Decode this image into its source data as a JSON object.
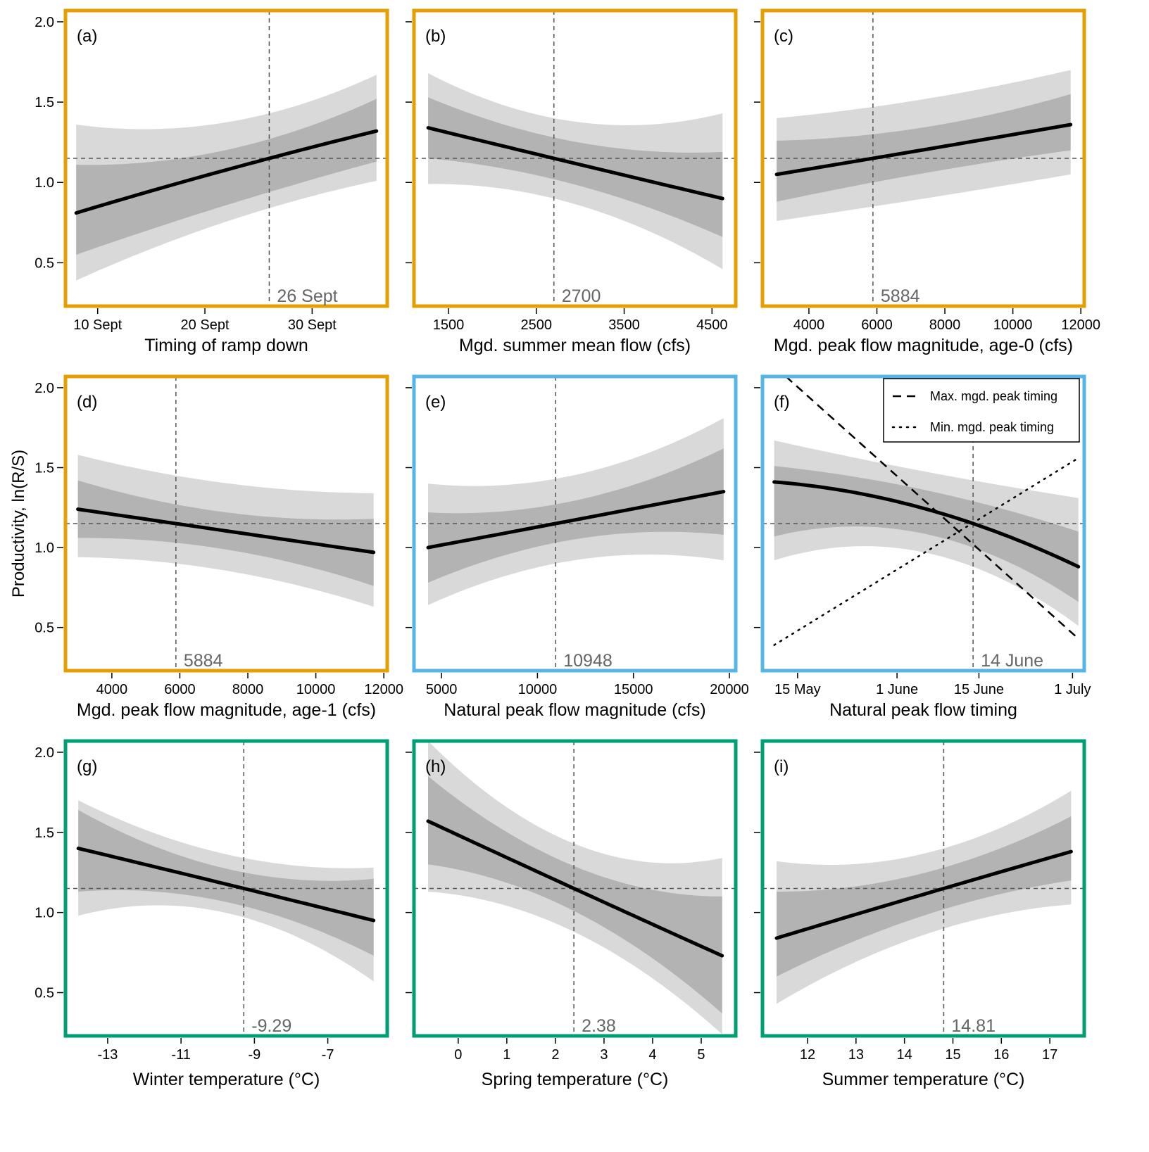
{
  "y_axis_label": "Productivity, ln(R/S)",
  "colors": {
    "flow_management": "#E69F00",
    "natural_flow": "#56B4E9",
    "temperature": "#009E73",
    "band_outer": "#d9d9d9",
    "band_inner": "#b3b3b3",
    "line": "#000000",
    "reference": "#555555"
  },
  "chart_data": [
    {
      "panel": "(a)",
      "type": "line",
      "frame_color": "#E69F00",
      "xlabel": "Timing of ramp down",
      "x_kind": "date",
      "xlim": [
        "09-07",
        "10-07"
      ],
      "ylim": [
        0.23,
        2.07
      ],
      "yticks": [
        0.5,
        1.0,
        1.5,
        2.0
      ],
      "xticks": [
        {
          "v": "09-10",
          "label": "10 Sept"
        },
        {
          "v": "09-20",
          "label": "20 Sept"
        },
        {
          "v": "09-30",
          "label": "30 Sept"
        }
      ],
      "ref_x": "09-26",
      "ref_label": "26 Sept",
      "ref_y": 1.15,
      "x": [
        "09-08",
        "09-26",
        "10-06"
      ],
      "fit": [
        0.81,
        1.15,
        1.32
      ],
      "inner_upper": [
        1.11,
        1.27,
        1.52
      ],
      "inner_lower": [
        0.55,
        0.94,
        1.13
      ],
      "outer_upper": [
        1.36,
        1.43,
        1.67
      ],
      "outer_lower": [
        0.39,
        0.84,
        1.01
      ]
    },
    {
      "panel": "(b)",
      "type": "line",
      "frame_color": "#E69F00",
      "xlabel": "Mgd. summer mean flow (cfs)",
      "x_kind": "number",
      "xlim": [
        1107,
        4770
      ],
      "ylim": [
        0.23,
        2.07
      ],
      "yticks": [
        0.5,
        1.0,
        1.5,
        2.0
      ],
      "xticks": [
        {
          "v": 1500,
          "label": "1500"
        },
        {
          "v": 2500,
          "label": "2500"
        },
        {
          "v": 3500,
          "label": "3500"
        },
        {
          "v": 4500,
          "label": "4500"
        }
      ],
      "ref_x": 2700,
      "ref_label": "2700",
      "ref_y": 1.15,
      "x": [
        1268,
        2700,
        4620
      ],
      "fit": [
        1.34,
        1.15,
        0.9
      ],
      "inner_upper": [
        1.53,
        1.28,
        1.19
      ],
      "inner_lower": [
        1.15,
        1.02,
        0.66
      ],
      "outer_upper": [
        1.68,
        1.4,
        1.43
      ],
      "outer_lower": [
        0.99,
        0.9,
        0.46
      ]
    },
    {
      "panel": "(c)",
      "type": "line",
      "frame_color": "#E69F00",
      "xlabel": "Mgd. peak flow magnitude, age-0 (cfs)",
      "x_kind": "number",
      "xlim": [
        2634,
        12100
      ],
      "ylim": [
        0.23,
        2.07
      ],
      "yticks": [
        0.5,
        1.0,
        1.5,
        2.0
      ],
      "xticks": [
        {
          "v": 4000,
          "label": "4000"
        },
        {
          "v": 6000,
          "label": "6000"
        },
        {
          "v": 8000,
          "label": "8000"
        },
        {
          "v": 10000,
          "label": "10000"
        },
        {
          "v": 12000,
          "label": "12000"
        }
      ],
      "ref_x": 5884,
      "ref_label": "5884",
      "ref_y": 1.15,
      "x": [
        3050,
        5884,
        11700
      ],
      "fit": [
        1.05,
        1.15,
        1.36
      ],
      "inner_upper": [
        1.26,
        1.3,
        1.55
      ],
      "inner_lower": [
        0.88,
        1.0,
        1.2
      ],
      "outer_upper": [
        1.4,
        1.47,
        1.7
      ],
      "outer_lower": [
        0.76,
        0.85,
        1.05
      ]
    },
    {
      "panel": "(d)",
      "type": "line",
      "frame_color": "#E69F00",
      "xlabel": "Mgd. peak flow magnitude, age-1 (cfs)",
      "x_kind": "number",
      "xlim": [
        2636,
        12100
      ],
      "ylim": [
        0.23,
        2.07
      ],
      "yticks": [
        0.5,
        1.0,
        1.5,
        2.0
      ],
      "xticks": [
        {
          "v": 4000,
          "label": "4000"
        },
        {
          "v": 6000,
          "label": "6000"
        },
        {
          "v": 8000,
          "label": "8000"
        },
        {
          "v": 10000,
          "label": "10000"
        },
        {
          "v": 12000,
          "label": "12000"
        }
      ],
      "ref_x": 5884,
      "ref_label": "5884",
      "ref_y": 1.15,
      "x": [
        3000,
        5884,
        11700
      ],
      "fit": [
        1.24,
        1.15,
        0.97
      ],
      "inner_upper": [
        1.42,
        1.27,
        1.18
      ],
      "inner_lower": [
        1.06,
        1.03,
        0.76
      ],
      "outer_upper": [
        1.58,
        1.45,
        1.34
      ],
      "outer_lower": [
        0.94,
        0.9,
        0.63
      ]
    },
    {
      "panel": "(e)",
      "type": "line",
      "frame_color": "#56B4E9",
      "xlabel": "Natural peak flow magnitude (cfs)",
      "x_kind": "number",
      "xlim": [
        3566,
        20330
      ],
      "ylim": [
        0.23,
        2.07
      ],
      "yticks": [
        0.5,
        1.0,
        1.5,
        2.0
      ],
      "xticks": [
        {
          "v": 5000,
          "label": "5000"
        },
        {
          "v": 10000,
          "label": "10000"
        },
        {
          "v": 15000,
          "label": "15000"
        },
        {
          "v": 20000,
          "label": "20000"
        }
      ],
      "ref_x": 10948,
      "ref_label": "10948",
      "ref_y": 1.15,
      "x": [
        4300,
        10948,
        19700
      ],
      "fit": [
        1.0,
        1.15,
        1.35
      ],
      "inner_upper": [
        1.22,
        1.27,
        1.62
      ],
      "inner_lower": [
        0.78,
        1.03,
        1.08
      ],
      "outer_upper": [
        1.4,
        1.43,
        1.81
      ],
      "outer_lower": [
        0.64,
        0.9,
        0.92
      ]
    },
    {
      "panel": "(f)",
      "type": "line",
      "frame_color": "#56B4E9",
      "xlabel": "Natural peak flow timing",
      "x_kind": "date",
      "xlim": [
        "05-09",
        "07-03"
      ],
      "ylim": [
        0.23,
        2.07
      ],
      "yticks": [
        0.5,
        1.0,
        1.5,
        2.0
      ],
      "xticks": [
        {
          "v": "05-15",
          "label": "15 May"
        },
        {
          "v": "06-01",
          "label": "1 June"
        },
        {
          "v": "06-15",
          "label": "15 June"
        },
        {
          "v": "07-01",
          "label": "1 July"
        }
      ],
      "ref_x": "06-14",
      "ref_label": "14 June",
      "ref_y": 1.15,
      "x": [
        "05-11",
        "06-14",
        "07-02"
      ],
      "fit": [
        1.41,
        1.15,
        0.88
      ],
      "inner_upper": [
        1.51,
        1.29,
        1.1
      ],
      "inner_lower": [
        1.07,
        1.0,
        0.66
      ],
      "outer_upper": [
        1.67,
        1.42,
        1.31
      ],
      "outer_lower": [
        0.92,
        0.88,
        0.51
      ],
      "extra_series": [
        {
          "name": "Max. mgd. peak timing",
          "style": "dashed",
          "x": [
            "05-13",
            "07-02"
          ],
          "y": [
            2.07,
            0.43
          ]
        },
        {
          "name": "Min. mgd. peak timing",
          "style": "dotted",
          "x": [
            "05-11",
            "07-02"
          ],
          "y": [
            0.39,
            1.56
          ]
        }
      ],
      "legend": "top-right"
    },
    {
      "panel": "(g)",
      "type": "line",
      "frame_color": "#009E73",
      "xlabel": "Winter temperature (°C)",
      "x_kind": "number",
      "xlim": [
        -14.15,
        -5.38
      ],
      "ylim": [
        0.23,
        2.07
      ],
      "yticks": [
        0.5,
        1.0,
        1.5,
        2.0
      ],
      "xticks": [
        {
          "v": -13,
          "label": "-13"
        },
        {
          "v": -11,
          "label": "-11"
        },
        {
          "v": -9,
          "label": "-9"
        },
        {
          "v": -7,
          "label": "-7"
        }
      ],
      "ref_x": -9.29,
      "ref_label": "-9.29",
      "ref_y": 1.15,
      "x": [
        -13.8,
        -9.29,
        -5.75
      ],
      "fit": [
        1.4,
        1.15,
        0.95
      ],
      "inner_upper": [
        1.64,
        1.25,
        1.21
      ],
      "inner_lower": [
        1.13,
        1.04,
        0.73
      ],
      "outer_upper": [
        1.7,
        1.34,
        1.28
      ],
      "outer_lower": [
        0.98,
        0.97,
        0.57
      ]
    },
    {
      "panel": "(h)",
      "type": "line",
      "frame_color": "#009E73",
      "xlabel": "Spring temperature (°C)",
      "x_kind": "number",
      "xlim": [
        -0.91,
        5.71
      ],
      "ylim": [
        0.23,
        2.07
      ],
      "yticks": [
        0.5,
        1.0,
        1.5,
        2.0
      ],
      "xticks": [
        {
          "v": 0,
          "label": "0"
        },
        {
          "v": 1,
          "label": "1"
        },
        {
          "v": 2,
          "label": "2"
        },
        {
          "v": 3,
          "label": "3"
        },
        {
          "v": 4,
          "label": "4"
        },
        {
          "v": 5,
          "label": "5"
        }
      ],
      "ref_x": 2.38,
      "ref_label": "2.38",
      "ref_y": 1.15,
      "x": [
        -0.62,
        2.38,
        5.43
      ],
      "fit": [
        1.57,
        1.15,
        0.73
      ],
      "inner_upper": [
        1.85,
        1.29,
        1.1
      ],
      "inner_lower": [
        1.3,
        1.01,
        0.37
      ],
      "outer_upper": [
        2.07,
        1.43,
        1.34
      ],
      "outer_lower": [
        1.13,
        0.88,
        0.24
      ]
    },
    {
      "panel": "(i)",
      "type": "line",
      "frame_color": "#009E73",
      "xlabel": "Summer temperature (°C)",
      "x_kind": "number",
      "xlim": [
        11.07,
        17.71
      ],
      "ylim": [
        0.23,
        2.07
      ],
      "yticks": [
        0.5,
        1.0,
        1.5,
        2.0
      ],
      "xticks": [
        {
          "v": 12,
          "label": "12"
        },
        {
          "v": 13,
          "label": "13"
        },
        {
          "v": 14,
          "label": "14"
        },
        {
          "v": 15,
          "label": "15"
        },
        {
          "v": 16,
          "label": "16"
        },
        {
          "v": 17,
          "label": "17"
        }
      ],
      "ref_x": 14.81,
      "ref_label": "14.81",
      "ref_y": 1.15,
      "x": [
        11.36,
        14.81,
        17.44
      ],
      "fit": [
        0.84,
        1.15,
        1.38
      ],
      "inner_upper": [
        1.13,
        1.28,
        1.6
      ],
      "inner_lower": [
        0.6,
        1.02,
        1.2
      ],
      "outer_upper": [
        1.32,
        1.4,
        1.76
      ],
      "outer_lower": [
        0.43,
        0.9,
        1.05
      ]
    }
  ]
}
